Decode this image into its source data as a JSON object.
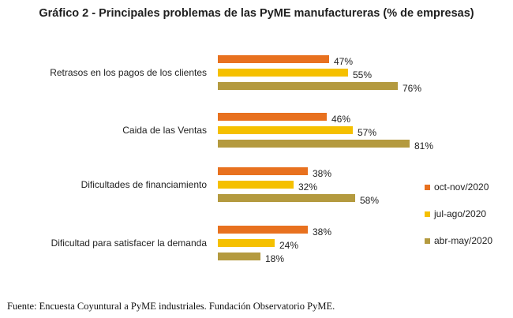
{
  "chart_data": {
    "type": "bar",
    "orientation": "horizontal",
    "title": "Gráfico 2 - Principales problemas de las PyME manufactureras (% de empresas)",
    "categories": [
      "Retrasos en los pagos de los clientes",
      "Caida de las Ventas",
      "Dificultades de financiamiento",
      "Dificultad para satisfacer la demanda"
    ],
    "series": [
      {
        "name": "oct-nov/2020",
        "color": "#E8711F",
        "values": [
          47,
          46,
          38,
          38
        ]
      },
      {
        "name": "jul-ago/2020",
        "color": "#F5C000",
        "values": [
          55,
          57,
          32,
          24
        ]
      },
      {
        "name": "abr-may/2020",
        "color": "#B49A3F",
        "values": [
          76,
          81,
          58,
          18
        ]
      }
    ],
    "value_suffix": "%",
    "xlim": [
      0,
      100
    ],
    "grid": false,
    "legend_position": "right"
  },
  "source": "Fuente: Encuesta Coyuntural a PyME industriales. Fundación Observatorio PyME."
}
